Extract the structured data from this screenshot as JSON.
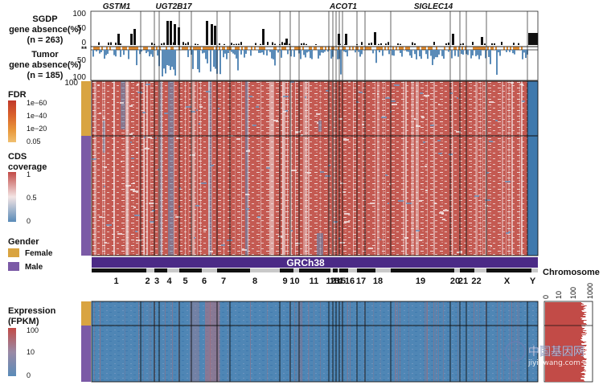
{
  "figure": {
    "left_labels": {
      "sgdp": [
        "SGDP",
        "gene absence(%)",
        "(n = 263)"
      ],
      "tumor": [
        "Tumor",
        "gene absence(%)",
        "(n = 185)"
      ],
      "sig_marker": "**"
    },
    "top_ticks": [
      "100",
      "50",
      "0"
    ],
    "tumor_ticks": [
      "50",
      "100"
    ],
    "heatmap_ticks": [
      "100"
    ],
    "gene_labels": [
      "GSTM1",
      "UGT2B17",
      "ACOT1",
      "SIGLEC14"
    ],
    "fdr_legend": {
      "title": "FDR",
      "ticks": [
        "1e−60",
        "1e−40",
        "1e−20",
        "0.05"
      ],
      "colors": [
        "#c0392b",
        "#d9612b",
        "#e8963a",
        "#f0c070"
      ]
    },
    "cds_legend": {
      "title": [
        "CDS",
        "coverage"
      ],
      "ticks": [
        "1",
        "0.5",
        "0"
      ],
      "colors": [
        "#c24b47",
        "#f3e4e4",
        "#5a8bb8"
      ]
    },
    "gender_legend": {
      "title": "Gender",
      "items": [
        {
          "label": "Female",
          "color": "#d9a441"
        },
        {
          "label": "Male",
          "color": "#7b5aa6"
        }
      ]
    },
    "expression_legend": {
      "title": [
        "Expression",
        "(FPKM)"
      ],
      "ticks": [
        "100",
        "10",
        "0"
      ],
      "colors": [
        "#c24b47",
        "#9a8aa6",
        "#5a8bb8"
      ]
    },
    "genome_label": "GRCh38",
    "chromosome_axis_title": "Chromosome",
    "chromosomes": [
      "1",
      "2",
      "3",
      "4",
      "5",
      "6",
      "7",
      "8",
      "9",
      "10",
      "11",
      "12",
      "13",
      "14",
      "15",
      "16",
      "17",
      "18",
      "19",
      "20",
      "21",
      "22",
      "X",
      "Y"
    ],
    "side_panel_ticks": [
      "0",
      "10",
      "100",
      "1000"
    ],
    "watermark": {
      "cn": "中国基因网",
      "url": "jiyinwang.com"
    }
  }
}
